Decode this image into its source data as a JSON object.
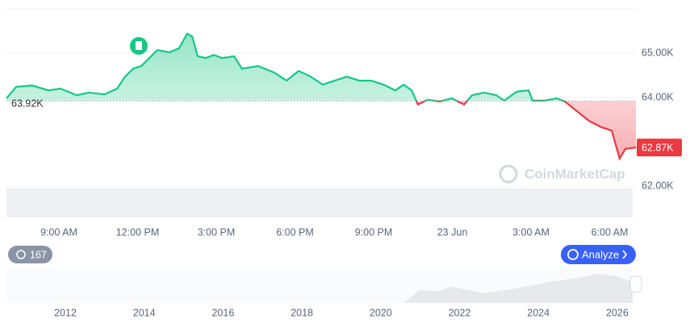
{
  "chart_data": {
    "type": "line",
    "x": [
      7.0,
      7.37,
      7.98,
      8.6,
      9.06,
      9.68,
      10.14,
      10.75,
      11.22,
      11.52,
      11.83,
      12.14,
      12.45,
      12.75,
      13.22,
      13.58,
      13.89,
      14.08,
      14.29,
      14.6,
      14.91,
      15.22,
      15.68,
      15.98,
      16.6,
      17.22,
      17.68,
      18.14,
      18.6,
      19.06,
      19.52,
      19.98,
      20.45,
      20.91,
      21.37,
      21.83,
      22.14,
      22.45,
      22.69,
      23.06,
      23.52,
      23.98,
      24.45,
      24.75,
      25.22,
      25.68,
      25.98,
      26.45,
      26.91,
      27.06,
      27.52,
      27.98,
      28.29,
      28.75,
      29.22,
      29.68,
      30.08,
      30.38,
      30.6,
      31.0
    ],
    "series": [
      {
        "colors": {
          "up": "#16c784",
          "down": "#ea3943"
        },
        "values": [
          63980,
          64240,
          64270,
          64160,
          64200,
          64050,
          64110,
          64070,
          64200,
          64470,
          64650,
          64710,
          64890,
          65070,
          65020,
          65110,
          65440,
          65380,
          64930,
          64890,
          64960,
          64890,
          64930,
          64650,
          64710,
          64560,
          64380,
          64600,
          64470,
          64290,
          64380,
          64470,
          64380,
          64380,
          64290,
          64160,
          64290,
          64160,
          63840,
          63950,
          63910,
          63980,
          63840,
          64050,
          64110,
          64050,
          63930,
          64130,
          64160,
          63930,
          63930,
          63980,
          63910,
          63690,
          63470,
          63330,
          63250,
          62620,
          62840,
          62870
        ]
      }
    ],
    "xlim": [
      7,
      31
    ],
    "xticks": [
      {
        "value": 9,
        "label": "9:00 AM"
      },
      {
        "value": 12,
        "label": "12:00 PM"
      },
      {
        "value": 15,
        "label": "3:00 PM"
      },
      {
        "value": 18,
        "label": "6:00 PM"
      },
      {
        "value": 21,
        "label": "9:00 PM"
      },
      {
        "value": 24,
        "label": "23 Jun"
      },
      {
        "value": 27,
        "label": "3:00 AM"
      },
      {
        "value": 30,
        "label": "6:00 AM"
      }
    ],
    "ylim": [
      61300,
      66000
    ],
    "yticks": [
      {
        "value": 62000,
        "label": "62.00K"
      },
      {
        "value": 64000,
        "label": "64.00K"
      },
      {
        "value": 65000,
        "label": "65.00K"
      }
    ],
    "baseline": {
      "value": 63920,
      "label": "63.92K"
    },
    "last_price": {
      "value": 62870,
      "label": "62.87K"
    },
    "grid": true
  },
  "ui": {
    "watermark": "CoinMarketCap",
    "event_count": 167,
    "analyze_button": "Analyze",
    "navigator_years": [
      2012,
      2014,
      2016,
      2018,
      2020,
      2022,
      2024,
      2026
    ]
  }
}
